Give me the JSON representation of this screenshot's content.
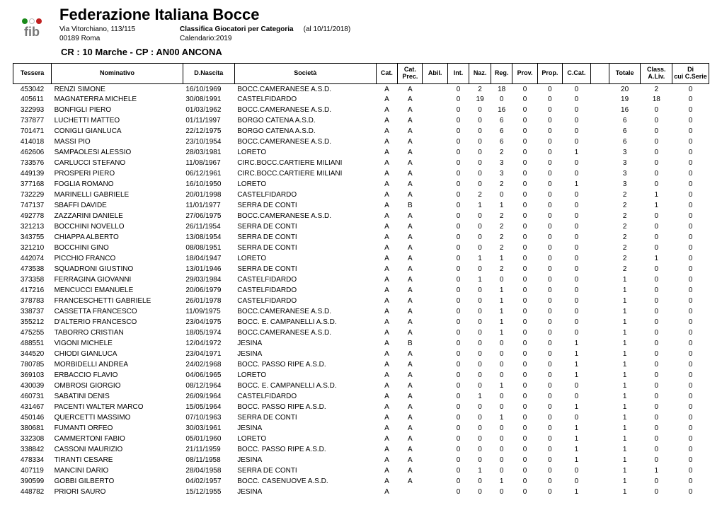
{
  "header": {
    "federation": "Federazione Italiana Bocce",
    "address": "Via Vitorchiano, 113/115",
    "subtitle": "Classifica Giocatori per Categoria",
    "as_of": "(al 10/11/2018)",
    "city": "00189 Roma",
    "calendar": "Calendario:2019",
    "crcp": "CR : 10 Marche - CP : AN00 ANCONA",
    "logo_colors": {
      "green": "#1a8a1a",
      "white_border": "#bbbbbb",
      "red": "#c02020",
      "text": "#777777"
    }
  },
  "columns": [
    {
      "key": "tessera",
      "label": "Tessera",
      "cls": "col-tessera"
    },
    {
      "key": "nome",
      "label": "Nominativo",
      "cls": "col-nome"
    },
    {
      "key": "dn",
      "label": "D.Nascita",
      "cls": "col-dn"
    },
    {
      "key": "soc",
      "label": "Società",
      "cls": "col-soc"
    },
    {
      "key": "cat",
      "label": "Cat.",
      "cls": "col-cat"
    },
    {
      "key": "catp",
      "label": "Cat. Prec.",
      "cls": "col-catp"
    },
    {
      "key": "abil",
      "label": "Abil.",
      "cls": "col-abil"
    },
    {
      "key": "intp",
      "label": "Int.",
      "cls": "col-int"
    },
    {
      "key": "naz",
      "label": "Naz.",
      "cls": "col-naz"
    },
    {
      "key": "reg",
      "label": "Reg.",
      "cls": "col-reg"
    },
    {
      "key": "prov",
      "label": "Prov.",
      "cls": "col-prov"
    },
    {
      "key": "prop",
      "label": "Prop.",
      "cls": "col-prop"
    },
    {
      "key": "ccat",
      "label": "C.Cat.",
      "cls": "col-ccat"
    },
    {
      "key": "blank",
      "label": "",
      "cls": "col-blank"
    },
    {
      "key": "tot",
      "label": "Totale",
      "cls": "col-tot"
    },
    {
      "key": "classl",
      "label": "Class. A.Liv.",
      "cls": "col-class"
    },
    {
      "key": "cserie",
      "label": "Di cui C.Serie",
      "cls": "col-cserie"
    }
  ],
  "rows": [
    {
      "tessera": "453042",
      "nome": "RENZI SIMONE",
      "dn": "16/10/1969",
      "soc": "BOCC.CAMERANESE A.S.D.",
      "cat": "A",
      "catp": "A",
      "abil": "",
      "intp": "0",
      "naz": "2",
      "reg": "18",
      "prov": "0",
      "prop": "0",
      "ccat": "0",
      "tot": "20",
      "classl": "2",
      "cserie": "0"
    },
    {
      "tessera": "405611",
      "nome": "MAGNATERRA MICHELE",
      "dn": "30/08/1991",
      "soc": "CASTELFIDARDO",
      "cat": "A",
      "catp": "A",
      "abil": "",
      "intp": "0",
      "naz": "19",
      "reg": "0",
      "prov": "0",
      "prop": "0",
      "ccat": "0",
      "tot": "19",
      "classl": "18",
      "cserie": "0"
    },
    {
      "tessera": "322993",
      "nome": "BONFIGLI PIERO",
      "dn": "01/03/1962",
      "soc": "BOCC.CAMERANESE A.S.D.",
      "cat": "A",
      "catp": "A",
      "abil": "",
      "intp": "0",
      "naz": "0",
      "reg": "16",
      "prov": "0",
      "prop": "0",
      "ccat": "0",
      "tot": "16",
      "classl": "0",
      "cserie": "0"
    },
    {
      "tessera": "737877",
      "nome": "LUCHETTI MATTEO",
      "dn": "01/11/1997",
      "soc": "BORGO CATENA  A.S.D.",
      "cat": "A",
      "catp": "A",
      "abil": "",
      "intp": "0",
      "naz": "0",
      "reg": "6",
      "prov": "0",
      "prop": "0",
      "ccat": "0",
      "tot": "6",
      "classl": "0",
      "cserie": "0"
    },
    {
      "tessera": "701471",
      "nome": "CONIGLI GIANLUCA",
      "dn": "22/12/1975",
      "soc": "BORGO CATENA  A.S.D.",
      "cat": "A",
      "catp": "A",
      "abil": "",
      "intp": "0",
      "naz": "0",
      "reg": "6",
      "prov": "0",
      "prop": "0",
      "ccat": "0",
      "tot": "6",
      "classl": "0",
      "cserie": "0"
    },
    {
      "tessera": "414018",
      "nome": "MASSI PIO",
      "dn": "23/10/1954",
      "soc": "BOCC.CAMERANESE A.S.D.",
      "cat": "A",
      "catp": "A",
      "abil": "",
      "intp": "0",
      "naz": "0",
      "reg": "6",
      "prov": "0",
      "prop": "0",
      "ccat": "0",
      "tot": "6",
      "classl": "0",
      "cserie": "0"
    },
    {
      "tessera": "462606",
      "nome": "SAMPAOLESI ALESSIO",
      "dn": "28/03/1981",
      "soc": "LORETO",
      "cat": "A",
      "catp": "A",
      "abil": "",
      "intp": "0",
      "naz": "0",
      "reg": "2",
      "prov": "0",
      "prop": "0",
      "ccat": "1",
      "tot": "3",
      "classl": "0",
      "cserie": "0"
    },
    {
      "tessera": "733576",
      "nome": "CARLUCCI STEFANO",
      "dn": "11/08/1967",
      "soc": "CIRC.BOCC.CARTIERE MILIANI",
      "cat": "A",
      "catp": "A",
      "abil": "",
      "intp": "0",
      "naz": "0",
      "reg": "3",
      "prov": "0",
      "prop": "0",
      "ccat": "0",
      "tot": "3",
      "classl": "0",
      "cserie": "0"
    },
    {
      "tessera": "449139",
      "nome": "PROSPERI PIERO",
      "dn": "06/12/1961",
      "soc": "CIRC.BOCC.CARTIERE MILIANI",
      "cat": "A",
      "catp": "A",
      "abil": "",
      "intp": "0",
      "naz": "0",
      "reg": "3",
      "prov": "0",
      "prop": "0",
      "ccat": "0",
      "tot": "3",
      "classl": "0",
      "cserie": "0"
    },
    {
      "tessera": "377168",
      "nome": "FOGLIA ROMANO",
      "dn": "16/10/1950",
      "soc": "LORETO",
      "cat": "A",
      "catp": "A",
      "abil": "",
      "intp": "0",
      "naz": "0",
      "reg": "2",
      "prov": "0",
      "prop": "0",
      "ccat": "1",
      "tot": "3",
      "classl": "0",
      "cserie": "0"
    },
    {
      "tessera": "732229",
      "nome": "MARINELLI GABRIELE",
      "dn": "20/01/1998",
      "soc": "CASTELFIDARDO",
      "cat": "A",
      "catp": "A",
      "abil": "",
      "intp": "0",
      "naz": "2",
      "reg": "0",
      "prov": "0",
      "prop": "0",
      "ccat": "0",
      "tot": "2",
      "classl": "1",
      "cserie": "0"
    },
    {
      "tessera": "747137",
      "nome": "SBAFFI DAVIDE",
      "dn": "11/01/1977",
      "soc": "SERRA DE CONTI",
      "cat": "A",
      "catp": "B",
      "abil": "",
      "intp": "0",
      "naz": "1",
      "reg": "1",
      "prov": "0",
      "prop": "0",
      "ccat": "0",
      "tot": "2",
      "classl": "1",
      "cserie": "0"
    },
    {
      "tessera": "492778",
      "nome": "ZAZZARINI DANIELE",
      "dn": "27/06/1975",
      "soc": "BOCC.CAMERANESE A.S.D.",
      "cat": "A",
      "catp": "A",
      "abil": "",
      "intp": "0",
      "naz": "0",
      "reg": "2",
      "prov": "0",
      "prop": "0",
      "ccat": "0",
      "tot": "2",
      "classl": "0",
      "cserie": "0"
    },
    {
      "tessera": "321213",
      "nome": "BOCCHINI NOVELLO",
      "dn": "26/11/1954",
      "soc": "SERRA DE CONTI",
      "cat": "A",
      "catp": "A",
      "abil": "",
      "intp": "0",
      "naz": "0",
      "reg": "2",
      "prov": "0",
      "prop": "0",
      "ccat": "0",
      "tot": "2",
      "classl": "0",
      "cserie": "0"
    },
    {
      "tessera": "343755",
      "nome": "CHIAPPA ALBERTO",
      "dn": "13/08/1954",
      "soc": "SERRA DE CONTI",
      "cat": "A",
      "catp": "A",
      "abil": "",
      "intp": "0",
      "naz": "0",
      "reg": "2",
      "prov": "0",
      "prop": "0",
      "ccat": "0",
      "tot": "2",
      "classl": "0",
      "cserie": "0"
    },
    {
      "tessera": "321210",
      "nome": "BOCCHINI GINO",
      "dn": "08/08/1951",
      "soc": "SERRA DE CONTI",
      "cat": "A",
      "catp": "A",
      "abil": "",
      "intp": "0",
      "naz": "0",
      "reg": "2",
      "prov": "0",
      "prop": "0",
      "ccat": "0",
      "tot": "2",
      "classl": "0",
      "cserie": "0"
    },
    {
      "tessera": "442074",
      "nome": "PICCHIO FRANCO",
      "dn": "18/04/1947",
      "soc": "LORETO",
      "cat": "A",
      "catp": "A",
      "abil": "",
      "intp": "0",
      "naz": "1",
      "reg": "1",
      "prov": "0",
      "prop": "0",
      "ccat": "0",
      "tot": "2",
      "classl": "1",
      "cserie": "0"
    },
    {
      "tessera": "473538",
      "nome": "SQUADRONI GIUSTINO",
      "dn": "13/01/1946",
      "soc": "SERRA DE CONTI",
      "cat": "A",
      "catp": "A",
      "abil": "",
      "intp": "0",
      "naz": "0",
      "reg": "2",
      "prov": "0",
      "prop": "0",
      "ccat": "0",
      "tot": "2",
      "classl": "0",
      "cserie": "0"
    },
    {
      "tessera": "373358",
      "nome": "FERRAGINA GIOVANNI",
      "dn": "29/03/1984",
      "soc": "CASTELFIDARDO",
      "cat": "A",
      "catp": "A",
      "abil": "",
      "intp": "0",
      "naz": "1",
      "reg": "0",
      "prov": "0",
      "prop": "0",
      "ccat": "0",
      "tot": "1",
      "classl": "0",
      "cserie": "0"
    },
    {
      "tessera": "417216",
      "nome": "MENCUCCI EMANUELE",
      "dn": "20/06/1979",
      "soc": "CASTELFIDARDO",
      "cat": "A",
      "catp": "A",
      "abil": "",
      "intp": "0",
      "naz": "0",
      "reg": "1",
      "prov": "0",
      "prop": "0",
      "ccat": "0",
      "tot": "1",
      "classl": "0",
      "cserie": "0"
    },
    {
      "tessera": "378783",
      "nome": "FRANCESCHETTI GABRIELE",
      "dn": "26/01/1978",
      "soc": "CASTELFIDARDO",
      "cat": "A",
      "catp": "A",
      "abil": "",
      "intp": "0",
      "naz": "0",
      "reg": "1",
      "prov": "0",
      "prop": "0",
      "ccat": "0",
      "tot": "1",
      "classl": "0",
      "cserie": "0"
    },
    {
      "tessera": "338737",
      "nome": "CASSETTA FRANCESCO",
      "dn": "11/09/1975",
      "soc": "BOCC.CAMERANESE A.S.D.",
      "cat": "A",
      "catp": "A",
      "abil": "",
      "intp": "0",
      "naz": "0",
      "reg": "1",
      "prov": "0",
      "prop": "0",
      "ccat": "0",
      "tot": "1",
      "classl": "0",
      "cserie": "0"
    },
    {
      "tessera": "355212",
      "nome": "D'ALTERIO FRANCESCO",
      "dn": "23/04/1975",
      "soc": "BOCC. E. CAMPANELLI A.S.D.",
      "cat": "A",
      "catp": "A",
      "abil": "",
      "intp": "0",
      "naz": "0",
      "reg": "1",
      "prov": "0",
      "prop": "0",
      "ccat": "0",
      "tot": "1",
      "classl": "0",
      "cserie": "0"
    },
    {
      "tessera": "475255",
      "nome": "TABORRO CRISTIAN",
      "dn": "18/05/1974",
      "soc": "BOCC.CAMERANESE A.S.D.",
      "cat": "A",
      "catp": "A",
      "abil": "",
      "intp": "0",
      "naz": "0",
      "reg": "1",
      "prov": "0",
      "prop": "0",
      "ccat": "0",
      "tot": "1",
      "classl": "0",
      "cserie": "0"
    },
    {
      "tessera": "488551",
      "nome": "VIGONI MICHELE",
      "dn": "12/04/1972",
      "soc": "JESINA",
      "cat": "A",
      "catp": "B",
      "abil": "",
      "intp": "0",
      "naz": "0",
      "reg": "0",
      "prov": "0",
      "prop": "0",
      "ccat": "1",
      "tot": "1",
      "classl": "0",
      "cserie": "0"
    },
    {
      "tessera": "344520",
      "nome": "CHIODI GIANLUCA",
      "dn": "23/04/1971",
      "soc": "JESINA",
      "cat": "A",
      "catp": "A",
      "abil": "",
      "intp": "0",
      "naz": "0",
      "reg": "0",
      "prov": "0",
      "prop": "0",
      "ccat": "1",
      "tot": "1",
      "classl": "0",
      "cserie": "0"
    },
    {
      "tessera": "780785",
      "nome": "MORBIDELLI ANDREA",
      "dn": "24/02/1968",
      "soc": "BOCC. PASSO RIPE A.S.D.",
      "cat": "A",
      "catp": "A",
      "abil": "",
      "intp": "0",
      "naz": "0",
      "reg": "0",
      "prov": "0",
      "prop": "0",
      "ccat": "1",
      "tot": "1",
      "classl": "0",
      "cserie": "0"
    },
    {
      "tessera": "369103",
      "nome": "ERBACCIO FLAVIO",
      "dn": "04/06/1965",
      "soc": "LORETO",
      "cat": "A",
      "catp": "A",
      "abil": "",
      "intp": "0",
      "naz": "0",
      "reg": "0",
      "prov": "0",
      "prop": "0",
      "ccat": "1",
      "tot": "1",
      "classl": "0",
      "cserie": "0"
    },
    {
      "tessera": "430039",
      "nome": "OMBROSI GIORGIO",
      "dn": "08/12/1964",
      "soc": "BOCC. E. CAMPANELLI A.S.D.",
      "cat": "A",
      "catp": "A",
      "abil": "",
      "intp": "0",
      "naz": "0",
      "reg": "1",
      "prov": "0",
      "prop": "0",
      "ccat": "0",
      "tot": "1",
      "classl": "0",
      "cserie": "0"
    },
    {
      "tessera": "460731",
      "nome": "SABATINI DENIS",
      "dn": "26/09/1964",
      "soc": "CASTELFIDARDO",
      "cat": "A",
      "catp": "A",
      "abil": "",
      "intp": "0",
      "naz": "1",
      "reg": "0",
      "prov": "0",
      "prop": "0",
      "ccat": "0",
      "tot": "1",
      "classl": "0",
      "cserie": "0"
    },
    {
      "tessera": "431467",
      "nome": "PACENTI WALTER MARCO",
      "dn": "15/05/1964",
      "soc": "BOCC. PASSO RIPE A.S.D.",
      "cat": "A",
      "catp": "A",
      "abil": "",
      "intp": "0",
      "naz": "0",
      "reg": "0",
      "prov": "0",
      "prop": "0",
      "ccat": "1",
      "tot": "1",
      "classl": "0",
      "cserie": "0"
    },
    {
      "tessera": "450146",
      "nome": "QUERCETTI MASSIMO",
      "dn": "07/10/1963",
      "soc": "SERRA DE CONTI",
      "cat": "A",
      "catp": "A",
      "abil": "",
      "intp": "0",
      "naz": "0",
      "reg": "1",
      "prov": "0",
      "prop": "0",
      "ccat": "0",
      "tot": "1",
      "classl": "0",
      "cserie": "0"
    },
    {
      "tessera": "380681",
      "nome": "FUMANTI ORFEO",
      "dn": "30/03/1961",
      "soc": "JESINA",
      "cat": "A",
      "catp": "A",
      "abil": "",
      "intp": "0",
      "naz": "0",
      "reg": "0",
      "prov": "0",
      "prop": "0",
      "ccat": "1",
      "tot": "1",
      "classl": "0",
      "cserie": "0"
    },
    {
      "tessera": "332308",
      "nome": "CAMMERTONI FABIO",
      "dn": "05/01/1960",
      "soc": "LORETO",
      "cat": "A",
      "catp": "A",
      "abil": "",
      "intp": "0",
      "naz": "0",
      "reg": "0",
      "prov": "0",
      "prop": "0",
      "ccat": "1",
      "tot": "1",
      "classl": "0",
      "cserie": "0"
    },
    {
      "tessera": "338842",
      "nome": "CASSONI MAURIZIO",
      "dn": "21/11/1959",
      "soc": "BOCC. PASSO RIPE A.S.D.",
      "cat": "A",
      "catp": "A",
      "abil": "",
      "intp": "0",
      "naz": "0",
      "reg": "0",
      "prov": "0",
      "prop": "0",
      "ccat": "1",
      "tot": "1",
      "classl": "0",
      "cserie": "0"
    },
    {
      "tessera": "478334",
      "nome": "TIRANTI CESARE",
      "dn": "08/11/1958",
      "soc": "JESINA",
      "cat": "A",
      "catp": "A",
      "abil": "",
      "intp": "0",
      "naz": "0",
      "reg": "0",
      "prov": "0",
      "prop": "0",
      "ccat": "1",
      "tot": "1",
      "classl": "0",
      "cserie": "0"
    },
    {
      "tessera": "407119",
      "nome": "MANCINI DARIO",
      "dn": "28/04/1958",
      "soc": "SERRA DE CONTI",
      "cat": "A",
      "catp": "A",
      "abil": "",
      "intp": "0",
      "naz": "1",
      "reg": "0",
      "prov": "0",
      "prop": "0",
      "ccat": "0",
      "tot": "1",
      "classl": "1",
      "cserie": "0"
    },
    {
      "tessera": "390599",
      "nome": "GOBBI GILBERTO",
      "dn": "04/02/1957",
      "soc": "BOCC. CASENUOVE A.S.D.",
      "cat": "A",
      "catp": "A",
      "abil": "",
      "intp": "0",
      "naz": "0",
      "reg": "1",
      "prov": "0",
      "prop": "0",
      "ccat": "0",
      "tot": "1",
      "classl": "0",
      "cserie": "0"
    },
    {
      "tessera": "448782",
      "nome": "PRIORI SAURO",
      "dn": "15/12/1955",
      "soc": "JESINA",
      "cat": "A",
      "catp": "",
      "abil": "",
      "intp": "0",
      "naz": "0",
      "reg": "0",
      "prov": "0",
      "prop": "0",
      "ccat": "1",
      "tot": "1",
      "classl": "0",
      "cserie": "0"
    }
  ]
}
